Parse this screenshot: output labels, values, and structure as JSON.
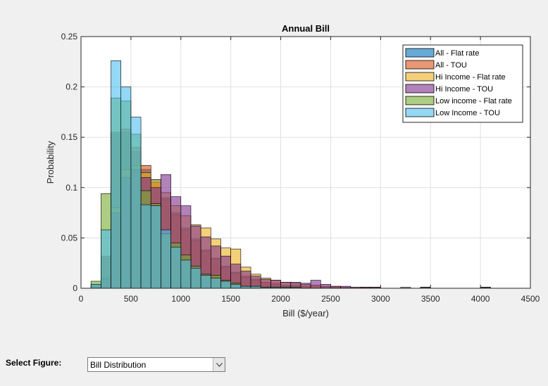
{
  "chart_data": {
    "type": "bar",
    "title": "Annual Bill",
    "xlabel": "Bill ($/year)",
    "ylabel": "Probability",
    "xlim": [
      0,
      4500
    ],
    "ylim": [
      0,
      0.25
    ],
    "xticks": [
      "0",
      "500",
      "1000",
      "1500",
      "2000",
      "2500",
      "3000",
      "3500",
      "4000",
      "4500"
    ],
    "yticks": [
      "0",
      "0.05",
      "0.1",
      "0.15",
      "0.2",
      "0.25"
    ],
    "grid": true,
    "legend_position": "top-right",
    "bin_width": 100,
    "bin_start": 100,
    "series": [
      {
        "name": "All - Flat rate",
        "color": "#0072BD",
        "values": [
          0.003,
          0.03,
          0.153,
          0.155,
          0.136,
          0.118,
          0.108,
          0.09,
          0.075,
          0.06,
          0.049,
          0.038,
          0.03,
          0.022,
          0.016,
          0.012,
          0.009,
          0.006,
          0.004,
          0.003,
          0.003,
          0.002,
          0.002,
          0.001,
          0.001,
          0,
          0,
          0.001,
          0.001,
          0,
          0,
          0,
          0,
          0.001,
          0,
          0,
          0,
          0,
          0,
          0.001,
          0
        ]
      },
      {
        "name": "All - TOU",
        "color": "#D95319",
        "values": [
          0.003,
          0.032,
          0.155,
          0.158,
          0.14,
          0.122,
          0.105,
          0.088,
          0.073,
          0.058,
          0.047,
          0.037,
          0.029,
          0.021,
          0.015,
          0.011,
          0.008,
          0.006,
          0.005,
          0.003,
          0.003,
          0.002,
          0.002,
          0.001,
          0.001,
          0,
          0,
          0.001,
          0.001,
          0,
          0,
          0,
          0,
          0.001,
          0,
          0,
          0,
          0,
          0,
          0.001,
          0
        ]
      },
      {
        "name": "Hi Income - Flat rate",
        "color": "#EDB120",
        "values": [
          0.001,
          0.01,
          0.08,
          0.118,
          0.122,
          0.115,
          0.108,
          0.095,
          0.082,
          0.072,
          0.063,
          0.06,
          0.049,
          0.04,
          0.039,
          0.021,
          0.014,
          0.01,
          0.008,
          0.006,
          0.005,
          0.004,
          0.003,
          0.002,
          0.002,
          0.001,
          0.001,
          0.001,
          0.001,
          0,
          0,
          0,
          0,
          0.001,
          0,
          0,
          0,
          0,
          0,
          0.001,
          0
        ]
      },
      {
        "name": "Hi Income - TOU",
        "color": "#7E2F8E",
        "values": [
          0.001,
          0.009,
          0.075,
          0.11,
          0.118,
          0.11,
          0.1,
          0.113,
          0.091,
          0.082,
          0.062,
          0.051,
          0.042,
          0.032,
          0.024,
          0.017,
          0.012,
          0.009,
          0.008,
          0.006,
          0.006,
          0.005,
          0.008,
          0.004,
          0.002,
          0.002,
          0.001,
          0.001,
          0.001,
          0,
          0,
          0.001,
          0,
          0.001,
          0,
          0,
          0,
          0,
          0,
          0.001,
          0
        ]
      },
      {
        "name": "Low income - Flat rate",
        "color": "#77AC30",
        "values": [
          0.007,
          0.094,
          0.189,
          0.186,
          0.153,
          0.097,
          0.084,
          0.054,
          0.045,
          0.033,
          0.022,
          0.014,
          0.013,
          0.008,
          0.005,
          0.002,
          0.002,
          0.001,
          0.001,
          0.001,
          0.001,
          0,
          0,
          0,
          0,
          0,
          0,
          0,
          0,
          0,
          0,
          0,
          0,
          0,
          0,
          0,
          0,
          0,
          0,
          0,
          0
        ]
      },
      {
        "name": "Low Income - TOU",
        "color": "#4DBEEE",
        "values": [
          0.004,
          0.058,
          0.226,
          0.2,
          0.17,
          0.083,
          0.082,
          0.058,
          0.041,
          0.028,
          0.02,
          0.013,
          0.01,
          0.007,
          0.004,
          0.002,
          0.002,
          0.001,
          0.001,
          0.001,
          0.001,
          0,
          0,
          0,
          0,
          0,
          0,
          0,
          0,
          0,
          0,
          0,
          0,
          0,
          0,
          0,
          0,
          0,
          0,
          0,
          0
        ]
      }
    ]
  },
  "controls": {
    "select_label": "Select Figure:",
    "select_value": "Bill Distribution"
  }
}
